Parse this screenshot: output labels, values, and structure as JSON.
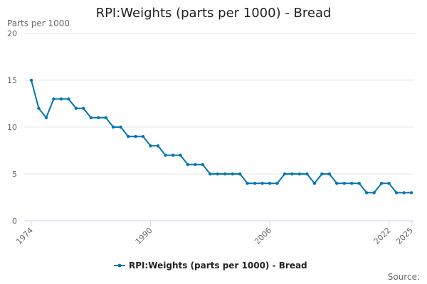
{
  "chart_data": {
    "type": "line",
    "title": "RPI:Weights (parts per 1000) - Bread",
    "ylabel": "Parts per 1000",
    "xlabel": "",
    "ylim": [
      0,
      20
    ],
    "yticks": [
      0,
      5,
      10,
      15,
      20
    ],
    "x_tick_labels": [
      1974,
      1990,
      2006,
      2022,
      2025
    ],
    "grid": true,
    "legend_position": "bottom-center",
    "source_label": "Source:",
    "colors": {
      "series": "#0075b0",
      "grid": "#e6e6e6",
      "axis": "#ccd6eb"
    },
    "x": [
      1974,
      1975,
      1976,
      1977,
      1978,
      1979,
      1980,
      1981,
      1982,
      1983,
      1984,
      1985,
      1986,
      1987,
      1988,
      1989,
      1990,
      1991,
      1992,
      1993,
      1994,
      1995,
      1996,
      1997,
      1998,
      1999,
      2000,
      2001,
      2002,
      2003,
      2004,
      2005,
      2006,
      2007,
      2008,
      2009,
      2010,
      2011,
      2012,
      2013,
      2014,
      2015,
      2016,
      2017,
      2018,
      2019,
      2020,
      2021,
      2022,
      2023,
      2024,
      2025
    ],
    "series": [
      {
        "name": "RPI:Weights (parts per 1000) - Bread",
        "values": [
          15,
          12,
          11,
          13,
          13,
          13,
          12,
          12,
          11,
          11,
          11,
          10,
          10,
          9,
          9,
          9,
          8,
          8,
          7,
          7,
          7,
          6,
          6,
          6,
          5,
          5,
          5,
          5,
          5,
          4,
          4,
          4,
          4,
          4,
          5,
          5,
          5,
          5,
          4,
          5,
          5,
          4,
          4,
          4,
          4,
          3,
          3,
          4,
          4,
          3,
          3,
          3
        ]
      }
    ]
  }
}
